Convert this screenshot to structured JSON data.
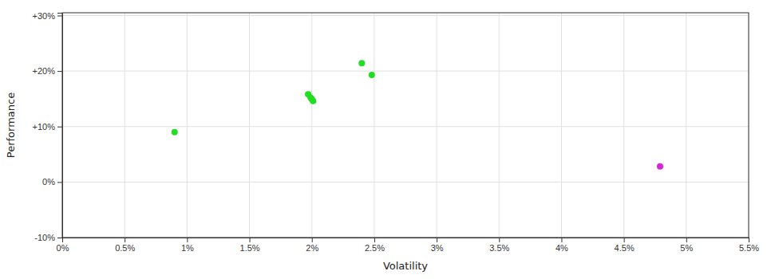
{
  "chart_data": {
    "type": "scatter",
    "xlabel": "Volatility",
    "ylabel": "Performance",
    "xlim": [
      0.0,
      0.055
    ],
    "ylim": [
      -0.1,
      0.305
    ],
    "xticks": [
      {
        "value": 0.0,
        "label": "0%"
      },
      {
        "value": 0.005,
        "label": "0.5%"
      },
      {
        "value": 0.01,
        "label": "1%"
      },
      {
        "value": 0.015,
        "label": "1.5%"
      },
      {
        "value": 0.02,
        "label": "2%"
      },
      {
        "value": 0.025,
        "label": "2.5%"
      },
      {
        "value": 0.03,
        "label": "3%"
      },
      {
        "value": 0.035,
        "label": "3.5%"
      },
      {
        "value": 0.04,
        "label": "4%"
      },
      {
        "value": 0.045,
        "label": "4.5%"
      },
      {
        "value": 0.05,
        "label": "5%"
      },
      {
        "value": 0.055,
        "label": "5.5%"
      }
    ],
    "yticks": [
      {
        "value": 0.3,
        "label": "+30%"
      },
      {
        "value": 0.2,
        "label": "+20%"
      },
      {
        "value": 0.1,
        "label": "+10%"
      },
      {
        "value": 0.0,
        "label": "0%"
      },
      {
        "value": -0.1,
        "label": "-10%"
      }
    ],
    "grid": true,
    "series": [
      {
        "color": "#22dd22",
        "x": [
          0.009,
          0.0197,
          0.0199,
          0.02,
          0.0201,
          0.024,
          0.0248
        ],
        "values": [
          0.09,
          0.158,
          0.152,
          0.149,
          0.146,
          0.214,
          0.193
        ]
      },
      {
        "color": "#dd22dd",
        "x": [
          0.0479
        ],
        "values": [
          0.028
        ]
      }
    ]
  }
}
